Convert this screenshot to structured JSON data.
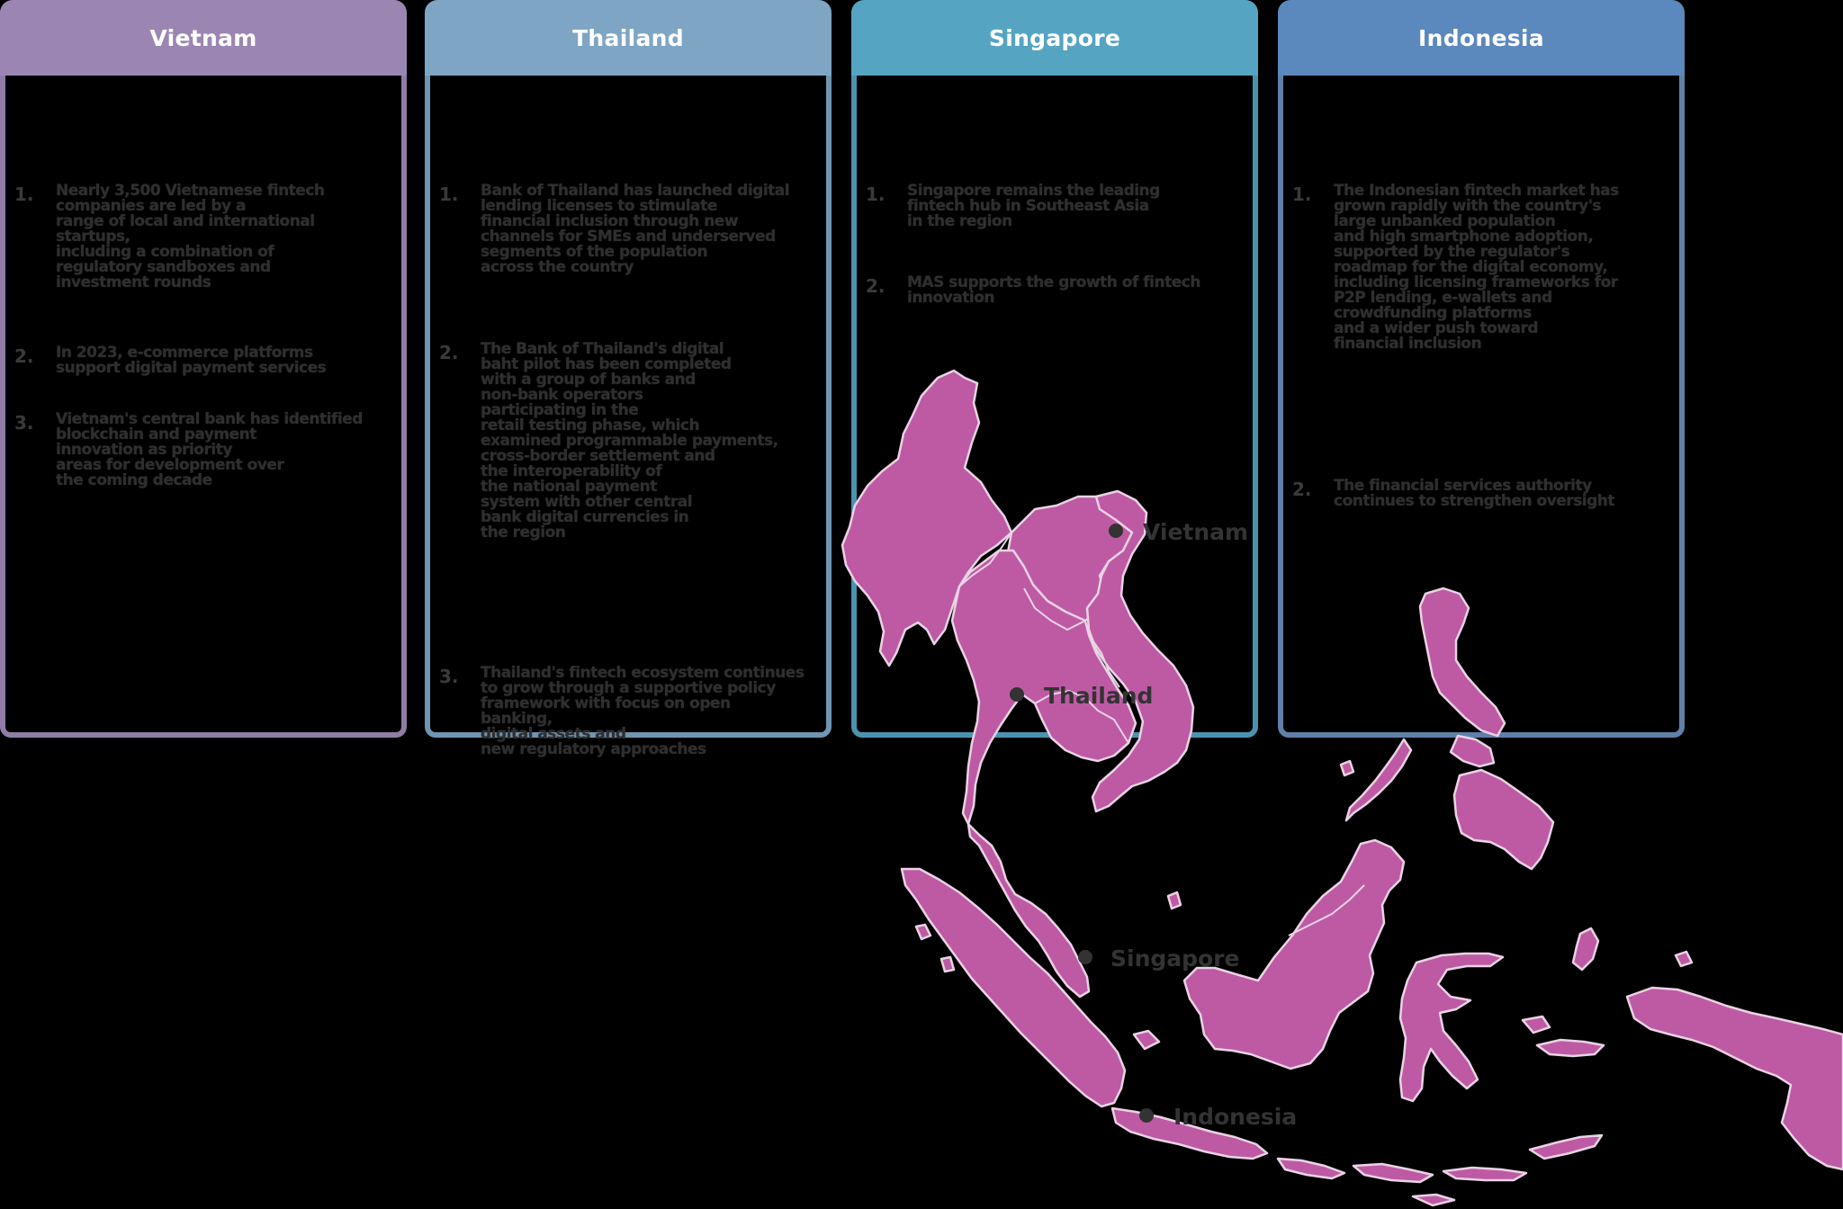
{
  "panels": [
    {
      "title": "Vietnam",
      "header_color": "#9b86b3",
      "border_color": "#8f7da8",
      "items": [
        {
          "num": "1.",
          "text": "Nearly 3,500 Vietnamese fintech companies are led by a\nrange of local and international startups,\nincluding a combination of\nregulatory sandboxes and\ninvestment rounds"
        },
        {
          "num": "2.",
          "text": "In 2023, e-commerce platforms\nsupport digital payment services"
        },
        {
          "num": "3.",
          "text": "Vietnam's central bank has identified\nblockchain and payment\ninnovation as priority\nareas for development over\nthe coming decade"
        }
      ]
    },
    {
      "title": "Thailand",
      "header_color": "#7ea6c4",
      "border_color": "#6f95b2",
      "items": [
        {
          "num": "1.",
          "text": "Bank of Thailand has launched digital\nlending licenses to stimulate\nfinancial inclusion through new\nchannels for SMEs and underserved\nsegments of the population\nacross the country"
        },
        {
          "num": "2.",
          "text": "The Bank of Thailand's digital\nbaht pilot has been completed\nwith a group of banks and\nnon-bank operators\nparticipating in the\nretail testing phase, which\nexamined programmable payments,\ncross-border settlement and\nthe interoperability of\nthe national payment\nsystem with other central\nbank digital currencies in\nthe region"
        },
        {
          "num": "3.",
          "text": "Thailand's fintech ecosystem continues\nto grow through a supportive policy\nframework with focus on open banking,\ndigital assets and\nnew regulatory approaches"
        }
      ]
    },
    {
      "title": "Singapore",
      "header_color": "#55a5c2",
      "border_color": "#4a93ae",
      "items": [
        {
          "num": "1.",
          "text": "Singapore remains the leading\nfintech hub in Southeast Asia\nin the region"
        },
        {
          "num": "2.",
          "text": "MAS supports the growth of fintech\ninnovation"
        }
      ]
    },
    {
      "title": "Indonesia",
      "header_color": "#5b88bd",
      "border_color": "#5f80a8",
      "items": [
        {
          "num": "1.",
          "text": "The Indonesian fintech market has\ngrown rapidly with the country's\nlarge unbanked population\nand high smartphone adoption,\nsupported by the regulator's\nroadmap for the digital economy,\nincluding licensing frameworks for\nP2P lending, e-wallets and\ncrowdfunding platforms\nand a wider push toward\nfinancial inclusion"
        },
        {
          "num": "2.",
          "text": "The financial services authority\ncontinues to strengthen oversight"
        }
      ]
    }
  ],
  "map": {
    "land_color": "#be5aa4",
    "border_color": "#e9d3e4",
    "pins": [
      {
        "label": "Vietnam"
      },
      {
        "label": "Thailand"
      },
      {
        "label": "Singapore"
      },
      {
        "label": "Indonesia"
      }
    ]
  }
}
